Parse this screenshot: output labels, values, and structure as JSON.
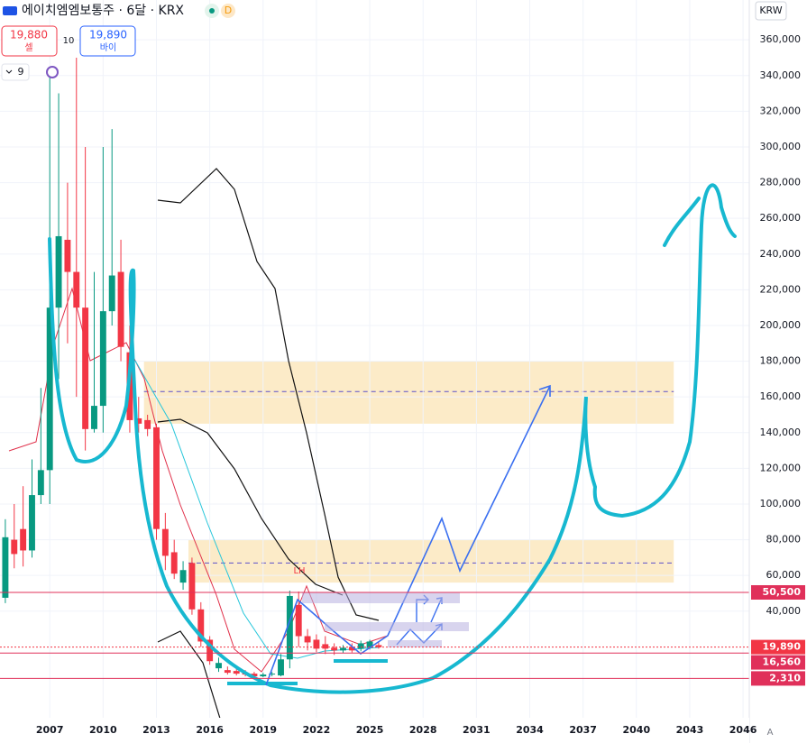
{
  "chart_data": {
    "type": "candlestick",
    "title": "에이치엠엠보통주 · 6달 · KRX",
    "interval_badge": "D",
    "sell_price": "19,880",
    "sell_label": "셀",
    "buy_price": "19,890",
    "buy_label": "바이",
    "spread": 10,
    "indicator_count": 9,
    "currency": "KRW",
    "annotation": "LH",
    "scale_mode": "A",
    "up_color": "#089981",
    "down_color": "#f23645",
    "x": [
      2004.5,
      2005,
      2005.5,
      2006,
      2006.5,
      2007,
      2007.5,
      2008,
      2008.5,
      2009,
      2009.5,
      2010,
      2010.5,
      2011,
      2011.5,
      2012,
      2012.5,
      2013,
      2013.5,
      2014,
      2014.5,
      2015,
      2015.5,
      2016,
      2016.5,
      2017,
      2017.5,
      2018,
      2018.5,
      2019,
      2019.5,
      2020,
      2020.5,
      2021,
      2021.5,
      2022,
      2022.5,
      2023,
      2023.5,
      2024,
      2024.5,
      2025,
      2025.5
    ],
    "open": [
      47500,
      80000,
      86000,
      74000,
      105000,
      119000,
      210000,
      248000,
      230000,
      210000,
      142000,
      155000,
      208000,
      230000,
      185000,
      148000,
      147000,
      143000,
      86000,
      73000,
      56000,
      67000,
      41000,
      24000,
      8000,
      7000,
      6500,
      5500,
      5000,
      3500,
      4500,
      4000,
      13000,
      43500,
      26000,
      24000,
      21500,
      19500,
      18000,
      20000,
      19000,
      19500,
      21000
    ],
    "high": [
      91500,
      100000,
      110000,
      125000,
      165000,
      340000,
      330000,
      280000,
      350000,
      300000,
      230000,
      300000,
      310000,
      248000,
      200000,
      160000,
      150000,
      145000,
      95000,
      80000,
      68000,
      70000,
      45000,
      26000,
      14000,
      9000,
      8000,
      7000,
      6000,
      5500,
      6000,
      16000,
      51500,
      51000,
      30000,
      27000,
      26000,
      22000,
      21000,
      22000,
      23500,
      24000,
      22500
    ],
    "low": [
      44500,
      64000,
      65000,
      70000,
      100000,
      100000,
      170000,
      190000,
      160000,
      130000,
      140000,
      140000,
      200000,
      180000,
      140000,
      140000,
      138000,
      80000,
      63000,
      58000,
      52000,
      38000,
      20000,
      10000,
      6000,
      4500,
      4000,
      3500,
      2310,
      3000,
      3500,
      3500,
      8000,
      20000,
      18000,
      17000,
      16000,
      15500,
      16560,
      16800,
      17500,
      18500,
      19000
    ],
    "close": [
      81400,
      72000,
      74000,
      105000,
      119000,
      210000,
      250000,
      230000,
      210000,
      142000,
      155000,
      208000,
      228000,
      188000,
      147000,
      145000,
      142000,
      86000,
      71000,
      61000,
      63000,
      41000,
      23000,
      12000,
      11000,
      5500,
      5000,
      4500,
      3500,
      4500,
      5000,
      13000,
      48500,
      26000,
      22500,
      19000,
      19000,
      18000,
      19500,
      18000,
      22000,
      23000,
      19890
    ],
    "xlim": [
      2004.2,
      2046.35
    ],
    "xticks": [
      2007,
      2010,
      2013,
      2016,
      2019,
      2022,
      2025,
      2028,
      2031,
      2034,
      2037,
      2040,
      2043,
      2046
    ],
    "ylim": [
      -19700,
      382300
    ],
    "yticks": [
      {
        "value": 40000,
        "label": "40,000"
      },
      {
        "value": 60000,
        "label": "60,000"
      },
      {
        "value": 80000,
        "label": "80,000"
      },
      {
        "value": 100000,
        "label": "100,000"
      },
      {
        "value": 120000,
        "label": "120,000"
      },
      {
        "value": 140000,
        "label": "140,000"
      },
      {
        "value": 160000,
        "label": "160,000"
      },
      {
        "value": 180000,
        "label": "180,000"
      },
      {
        "value": 200000,
        "label": "200,000"
      },
      {
        "value": 220000,
        "label": "220,000"
      },
      {
        "value": 240000,
        "label": "240,000"
      },
      {
        "value": 260000,
        "label": "260,000"
      },
      {
        "value": 280000,
        "label": "280,000"
      },
      {
        "value": 300000,
        "label": "300,000"
      },
      {
        "value": 320000,
        "label": "320,000"
      },
      {
        "value": 340000,
        "label": "340,000"
      },
      {
        "value": 360000,
        "label": "360,000"
      }
    ],
    "price_lines": [
      {
        "value": 50500,
        "label": "50,500",
        "color": "#e0305a"
      },
      {
        "value": 19890,
        "label": "19,890",
        "color": "#f23645"
      },
      {
        "value": 16560,
        "label": "16,560",
        "color": "#e0305a"
      },
      {
        "value": 2310,
        "label": "2,310",
        "color": "#e0305a"
      }
    ],
    "zones": [
      {
        "from": 2012.3,
        "to": 2042.1,
        "low": 145000,
        "high": 180000,
        "mid": 163000
      },
      {
        "from": 2014.8,
        "to": 2042.1,
        "low": 56000,
        "high": 80000,
        "mid": 67000
      }
    ]
  }
}
